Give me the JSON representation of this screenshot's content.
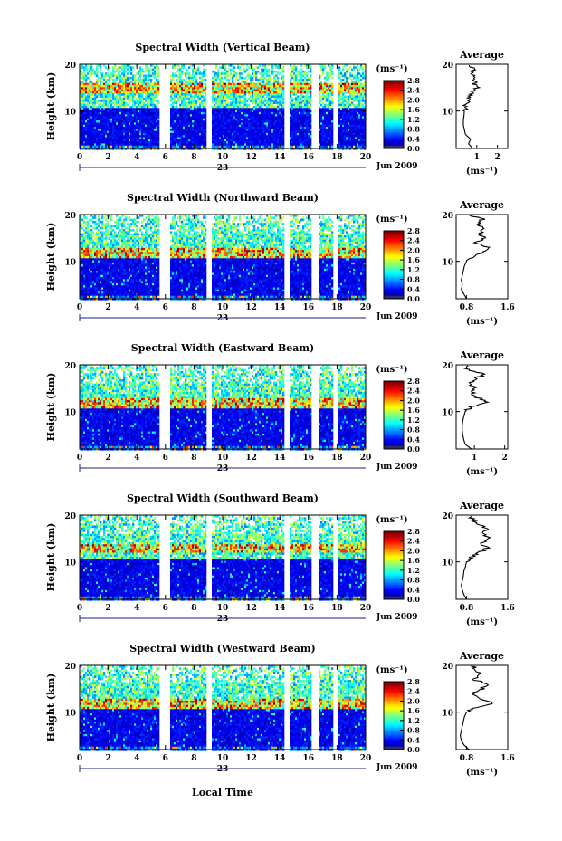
{
  "figure": {
    "xlabel": "Local Time",
    "ylabel": "Height (km)",
    "date_label": "Jun 2009",
    "day_label": "23",
    "x_ticks": [
      0,
      2,
      4,
      6,
      8,
      10,
      12,
      14,
      16,
      18,
      20
    ],
    "y_ticks": [
      10,
      20
    ],
    "colorbar_unit": "(ms⁻¹)",
    "colorbar_ticks": [
      0.0,
      0.4,
      0.8,
      1.2,
      1.6,
      2.0,
      2.4,
      2.8
    ],
    "colorbar_tick_labels": [
      "0.0",
      "0.4",
      "0.8",
      "1.2",
      "1.6",
      "2.0",
      "2.4",
      "2.8"
    ],
    "average_title": "Average",
    "average_xlabel": "(ms⁻¹)"
  },
  "chart_data": [
    {
      "type": "heatmap",
      "title": "Spectral Width (Vertical Beam)",
      "xlabel": "Local Time",
      "ylabel": "Height (km)",
      "xlim": [
        0,
        20
      ],
      "ylim": [
        2,
        20
      ],
      "clim": [
        0,
        2.8
      ],
      "data_gaps_hours": [
        [
          5.5,
          6.3
        ],
        [
          8.8,
          9.2
        ],
        [
          14.2,
          14.6
        ],
        [
          16.2,
          16.6
        ],
        [
          17.6,
          18.0
        ]
      ],
      "enhanced_layers_km": [
        [
          14,
          16
        ]
      ],
      "average_profile": {
        "xlim": [
          0,
          2.5
        ],
        "x_tick_labels": [
          "1",
          "2"
        ],
        "x_ticks": [
          1,
          2
        ],
        "height_km": [
          2,
          3,
          4,
          5,
          6,
          7,
          8,
          9,
          10,
          11,
          12,
          13,
          14,
          15,
          16,
          17,
          18,
          19,
          20
        ],
        "width_ms": [
          0.8,
          0.6,
          0.7,
          0.45,
          0.4,
          0.35,
          0.35,
          0.38,
          0.4,
          0.45,
          0.55,
          0.6,
          0.75,
          1.0,
          0.85,
          1.0,
          0.7,
          0.95,
          0.6
        ]
      }
    },
    {
      "type": "heatmap",
      "title": "Spectral Width (Northward Beam)",
      "xlabel": "Local Time",
      "ylabel": "Height (km)",
      "xlim": [
        0,
        20
      ],
      "ylim": [
        2,
        20
      ],
      "clim": [
        0,
        2.8
      ],
      "data_gaps_hours": [
        [
          5.5,
          6.3
        ],
        [
          8.8,
          9.2
        ],
        [
          14.2,
          14.6
        ],
        [
          16.2,
          16.6
        ],
        [
          17.6,
          18.0
        ]
      ],
      "enhanced_layers_km": [
        [
          11,
          13
        ]
      ],
      "average_profile": {
        "xlim": [
          0.6,
          1.6
        ],
        "x_tick_labels": [
          "0.8",
          "1.6"
        ],
        "x_ticks": [
          0.8,
          1.6
        ],
        "height_km": [
          2,
          3,
          4,
          5,
          6,
          7,
          8,
          9,
          10,
          11,
          12,
          13,
          14,
          15,
          16,
          17,
          18,
          19,
          20
        ],
        "width_ms": [
          0.8,
          0.75,
          0.7,
          0.72,
          0.7,
          0.72,
          0.74,
          0.76,
          0.8,
          0.95,
          1.1,
          1.2,
          1.0,
          1.15,
          1.05,
          1.15,
          1.0,
          1.1,
          0.85
        ]
      }
    },
    {
      "type": "heatmap",
      "title": "Spectral Width (Eastward Beam)",
      "xlabel": "Local Time",
      "ylabel": "Height (km)",
      "xlim": [
        0,
        20
      ],
      "ylim": [
        2,
        20
      ],
      "clim": [
        0,
        2.8
      ],
      "data_gaps_hours": [
        [
          5.5,
          6.3
        ],
        [
          8.8,
          9.2
        ],
        [
          14.2,
          14.6
        ],
        [
          16.2,
          16.6
        ],
        [
          17.6,
          18.0
        ]
      ],
      "enhanced_layers_km": [
        [
          11,
          13
        ]
      ],
      "average_profile": {
        "xlim": [
          0.4,
          2.1
        ],
        "x_tick_labels": [
          "1",
          "2"
        ],
        "x_ticks": [
          1,
          2
        ],
        "height_km": [
          2,
          3,
          4,
          5,
          6,
          7,
          8,
          9,
          10,
          11,
          12,
          13,
          14,
          15,
          16,
          17,
          18,
          19,
          20
        ],
        "width_ms": [
          0.9,
          0.7,
          0.65,
          0.62,
          0.6,
          0.6,
          0.62,
          0.65,
          0.7,
          0.9,
          1.5,
          1.1,
          0.95,
          1.0,
          0.9,
          1.05,
          1.3,
          0.8,
          0.7
        ]
      }
    },
    {
      "type": "heatmap",
      "title": "Spectral Width (Southward Beam)",
      "xlabel": "Local Time",
      "ylabel": "Height (km)",
      "xlim": [
        0,
        20
      ],
      "ylim": [
        2,
        20
      ],
      "clim": [
        0,
        2.8
      ],
      "data_gaps_hours": [
        [
          5.5,
          6.3
        ],
        [
          8.8,
          9.2
        ],
        [
          14.2,
          14.6
        ],
        [
          16.2,
          16.6
        ],
        [
          17.6,
          18.0
        ]
      ],
      "enhanced_layers_km": [
        [
          12,
          14
        ]
      ],
      "average_profile": {
        "xlim": [
          0.6,
          1.6
        ],
        "x_tick_labels": [
          "0.8",
          "1.6"
        ],
        "x_ticks": [
          0.8,
          1.6
        ],
        "height_km": [
          2,
          3,
          4,
          5,
          6,
          7,
          8,
          9,
          10,
          11,
          12,
          13,
          14,
          15,
          16,
          17,
          18,
          19,
          20
        ],
        "width_ms": [
          0.8,
          0.75,
          0.72,
          0.7,
          0.72,
          0.74,
          0.75,
          0.78,
          0.8,
          0.9,
          1.05,
          1.2,
          1.1,
          1.25,
          1.1,
          1.2,
          1.05,
          0.95,
          0.85
        ]
      }
    },
    {
      "type": "heatmap",
      "title": "Spectral Width (Westward Beam)",
      "xlabel": "Local Time",
      "ylabel": "Height (km)",
      "xlim": [
        0,
        20
      ],
      "ylim": [
        2,
        20
      ],
      "clim": [
        0,
        2.8
      ],
      "data_gaps_hours": [
        [
          5.5,
          6.3
        ],
        [
          8.8,
          9.2
        ],
        [
          14.2,
          14.6
        ],
        [
          16.2,
          16.6
        ],
        [
          17.6,
          18.0
        ]
      ],
      "enhanced_layers_km": [
        [
          11,
          13
        ]
      ],
      "average_profile": {
        "xlim": [
          0.6,
          1.6
        ],
        "x_tick_labels": [
          "0.8",
          "1.6"
        ],
        "x_ticks": [
          0.8,
          1.6
        ],
        "height_km": [
          2,
          3,
          4,
          5,
          6,
          7,
          8,
          9,
          10,
          11,
          12,
          13,
          14,
          15,
          16,
          17,
          18,
          19,
          20
        ],
        "width_ms": [
          0.85,
          0.75,
          0.7,
          0.68,
          0.7,
          0.72,
          0.74,
          0.76,
          0.8,
          1.0,
          1.3,
          1.05,
          0.95,
          1.1,
          1.2,
          0.95,
          1.1,
          1.0,
          0.9
        ]
      }
    }
  ]
}
